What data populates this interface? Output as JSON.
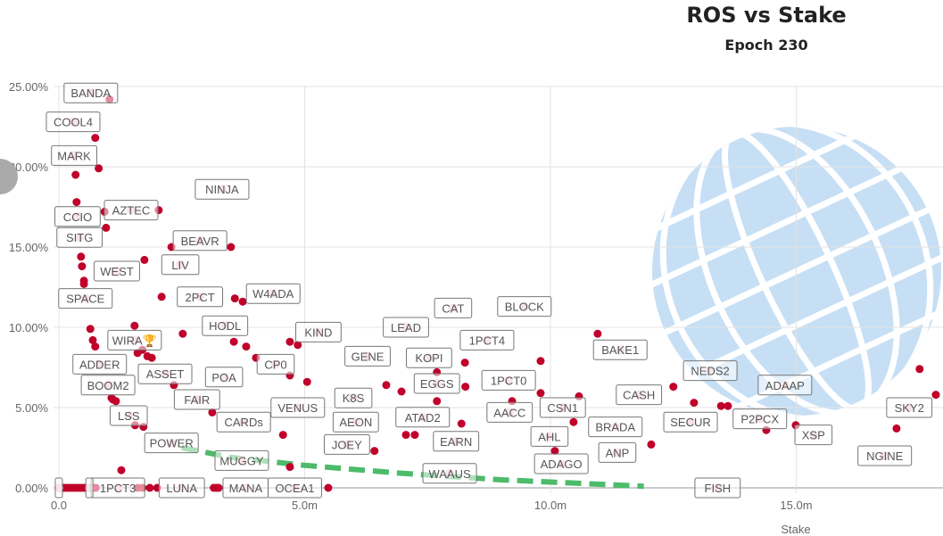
{
  "chart_data": {
    "type": "scatter",
    "title": "ROS vs Stake",
    "subtitle": "Epoch 230",
    "xlabel": "Stake",
    "ylabel": "",
    "xlim": [
      0,
      18
    ],
    "ylim": [
      0,
      25
    ],
    "x_ticks": [
      "0.0",
      "5.0m",
      "10.0m",
      "15.0m"
    ],
    "x_tick_values": [
      0,
      5,
      10,
      15
    ],
    "y_ticks": [
      "0.00%",
      "5.00%",
      "10.00%",
      "15.00%",
      "20.00%",
      "25.00%"
    ],
    "y_tick_values": [
      0,
      5,
      10,
      15,
      20,
      25
    ],
    "grid": true,
    "colors": {
      "point": "#c0002a",
      "labeled_point": "#f2c4cf",
      "trend": "#4cbb6a",
      "watermark": "#c6dff5"
    },
    "labeled_pools": [
      {
        "name": "BANDA",
        "x": 0.65,
        "y": 24.6
      },
      {
        "name": "COOL4",
        "x": 0.29,
        "y": 22.8
      },
      {
        "name": "MARK",
        "x": 0.31,
        "y": 20.7
      },
      {
        "name": "NINJA",
        "x": 3.32,
        "y": 18.6
      },
      {
        "name": "CCIO",
        "x": 0.38,
        "y": 16.9
      },
      {
        "name": "AZTEC",
        "x": 1.47,
        "y": 17.3
      },
      {
        "name": "SITG",
        "x": 0.42,
        "y": 15.6
      },
      {
        "name": "BEAVR",
        "x": 2.87,
        "y": 15.4
      },
      {
        "name": "LIV",
        "x": 2.47,
        "y": 13.9
      },
      {
        "name": "WEST",
        "x": 1.18,
        "y": 13.5
      },
      {
        "name": "SPACE",
        "x": 0.54,
        "y": 11.8
      },
      {
        "name": "2PCT",
        "x": 2.87,
        "y": 11.9
      },
      {
        "name": "W4ADA",
        "x": 4.36,
        "y": 12.1
      },
      {
        "name": "HODL",
        "x": 3.38,
        "y": 10.1
      },
      {
        "name": "LEAD",
        "x": 7.06,
        "y": 10.0
      },
      {
        "name": "CAT",
        "x": 8.02,
        "y": 11.2
      },
      {
        "name": "BLOCK",
        "x": 9.47,
        "y": 11.3
      },
      {
        "name": "KIND",
        "x": 5.28,
        "y": 9.7
      },
      {
        "name": "1PCT4",
        "x": 8.71,
        "y": 9.2
      },
      {
        "name": "WIRA🏆",
        "x": 1.54,
        "y": 9.2
      },
      {
        "name": "BAKE1",
        "x": 11.42,
        "y": 8.6
      },
      {
        "name": "GENE",
        "x": 6.28,
        "y": 8.2
      },
      {
        "name": "KOPI",
        "x": 7.53,
        "y": 8.1
      },
      {
        "name": "ADDER",
        "x": 0.83,
        "y": 7.7
      },
      {
        "name": "CP0",
        "x": 4.41,
        "y": 7.7
      },
      {
        "name": "ASSET",
        "x": 2.16,
        "y": 7.1
      },
      {
        "name": "POA",
        "x": 3.36,
        "y": 6.9
      },
      {
        "name": "NEDS2",
        "x": 13.25,
        "y": 7.3
      },
      {
        "name": "ADAAP",
        "x": 14.77,
        "y": 6.4
      },
      {
        "name": "EGGS",
        "x": 7.69,
        "y": 6.5
      },
      {
        "name": "1PCT0",
        "x": 9.15,
        "y": 6.7
      },
      {
        "name": "BOOM2",
        "x": 1.0,
        "y": 6.4
      },
      {
        "name": "CASH",
        "x": 11.8,
        "y": 5.8
      },
      {
        "name": "FAIR",
        "x": 2.81,
        "y": 5.5
      },
      {
        "name": "K8S",
        "x": 5.99,
        "y": 5.6
      },
      {
        "name": "VENUS",
        "x": 4.86,
        "y": 5.0
      },
      {
        "name": "CSN1",
        "x": 10.25,
        "y": 5.0
      },
      {
        "name": "SKY2",
        "x": 17.3,
        "y": 5.0
      },
      {
        "name": "AACC",
        "x": 9.17,
        "y": 4.7
      },
      {
        "name": "ATAD2",
        "x": 7.4,
        "y": 4.4
      },
      {
        "name": "LSS",
        "x": 1.42,
        "y": 4.5
      },
      {
        "name": "AEON",
        "x": 6.04,
        "y": 4.1
      },
      {
        "name": "CARDs",
        "x": 3.76,
        "y": 4.1
      },
      {
        "name": "SECUR",
        "x": 12.85,
        "y": 4.1
      },
      {
        "name": "P2PCX",
        "x": 14.26,
        "y": 4.3
      },
      {
        "name": "BRADA",
        "x": 11.32,
        "y": 3.8
      },
      {
        "name": "XSP",
        "x": 15.35,
        "y": 3.3
      },
      {
        "name": "AHL",
        "x": 9.98,
        "y": 3.2
      },
      {
        "name": "EARN",
        "x": 8.08,
        "y": 2.9
      },
      {
        "name": "POWER",
        "x": 2.29,
        "y": 2.8
      },
      {
        "name": "JOEY",
        "x": 5.86,
        "y": 2.7
      },
      {
        "name": "ANP",
        "x": 11.36,
        "y": 2.2
      },
      {
        "name": "NGINE",
        "x": 16.8,
        "y": 2.0
      },
      {
        "name": "MUGGY",
        "x": 3.72,
        "y": 1.7
      },
      {
        "name": "ADAGO",
        "x": 10.22,
        "y": 1.5
      },
      {
        "name": "WAAUS",
        "x": 7.95,
        "y": 0.9
      },
      {
        "name": "1PCT3",
        "x": 1.2,
        "y": 0
      },
      {
        "name": "LUNA",
        "x": 2.5,
        "y": 0
      },
      {
        "name": "MANA",
        "x": 3.8,
        "y": 0
      },
      {
        "name": "OCEA1",
        "x": 4.8,
        "y": 0
      },
      {
        "name": "FISH",
        "x": 13.4,
        "y": 0
      },
      {
        "name": "",
        "x": 0.0,
        "y": 0
      },
      {
        "name": "",
        "x": 0.62,
        "y": 0
      }
    ],
    "points": [
      [
        1.03,
        24.2
      ],
      [
        0.74,
        21.8
      ],
      [
        0.81,
        19.9
      ],
      [
        0.34,
        19.5
      ],
      [
        0.36,
        17.8
      ],
      [
        0.93,
        17.2
      ],
      [
        2.03,
        17.3
      ],
      [
        0.96,
        16.2
      ],
      [
        2.29,
        15.0
      ],
      [
        3.5,
        15.0
      ],
      [
        0.45,
        14.4
      ],
      [
        0.47,
        13.8
      ],
      [
        1.74,
        14.2
      ],
      [
        0.51,
        12.9
      ],
      [
        0.51,
        12.7
      ],
      [
        2.09,
        11.9
      ],
      [
        3.58,
        11.8
      ],
      [
        3.74,
        11.6
      ],
      [
        0.64,
        9.9
      ],
      [
        0.69,
        9.2
      ],
      [
        0.74,
        8.8
      ],
      [
        1.54,
        10.1
      ],
      [
        2.52,
        9.6
      ],
      [
        3.56,
        9.1
      ],
      [
        3.81,
        8.8
      ],
      [
        4.01,
        8.1
      ],
      [
        4.7,
        9.1
      ],
      [
        4.86,
        8.9
      ],
      [
        4.7,
        7.0
      ],
      [
        5.05,
        6.6
      ],
      [
        1.8,
        8.2
      ],
      [
        1.89,
        8.1
      ],
      [
        1.6,
        8.4
      ],
      [
        1.7,
        8.6
      ],
      [
        1.07,
        5.6
      ],
      [
        1.16,
        5.4
      ],
      [
        1.1,
        5.5
      ],
      [
        2.34,
        6.4
      ],
      [
        3.12,
        4.7
      ],
      [
        1.72,
        3.8
      ],
      [
        1.55,
        3.9
      ],
      [
        4.56,
        3.3
      ],
      [
        1.27,
        1.1
      ],
      [
        4.7,
        1.3
      ],
      [
        6.66,
        6.4
      ],
      [
        6.97,
        6.0
      ],
      [
        7.69,
        7.2
      ],
      [
        8.27,
        6.3
      ],
      [
        8.26,
        7.8
      ],
      [
        7.69,
        5.4
      ],
      [
        8.19,
        4.0
      ],
      [
        7.06,
        3.3
      ],
      [
        7.24,
        3.3
      ],
      [
        6.42,
        2.3
      ],
      [
        9.8,
        7.9
      ],
      [
        9.8,
        5.9
      ],
      [
        9.22,
        5.4
      ],
      [
        10.58,
        5.7
      ],
      [
        10.47,
        4.1
      ],
      [
        10.09,
        2.3
      ],
      [
        10.96,
        9.6
      ],
      [
        12.5,
        6.3
      ],
      [
        12.92,
        5.3
      ],
      [
        13.47,
        5.1
      ],
      [
        13.61,
        5.1
      ],
      [
        14.39,
        3.6
      ],
      [
        14.99,
        3.9
      ],
      [
        12.05,
        2.7
      ],
      [
        17.51,
        7.4
      ],
      [
        17.84,
        5.8
      ],
      [
        17.04,
        3.7
      ],
      [
        0.05,
        0
      ],
      [
        0.1,
        0
      ],
      [
        0.15,
        0
      ],
      [
        0.2,
        0
      ],
      [
        0.25,
        0
      ],
      [
        0.3,
        0
      ],
      [
        0.35,
        0
      ],
      [
        0.4,
        0
      ],
      [
        0.45,
        0
      ],
      [
        0.5,
        0
      ],
      [
        0.55,
        0
      ],
      [
        0.7,
        0
      ],
      [
        0.75,
        0
      ],
      [
        1.6,
        0
      ],
      [
        1.7,
        0
      ],
      [
        1.85,
        0
      ],
      [
        2.0,
        0
      ],
      [
        3.15,
        0
      ],
      [
        3.2,
        0
      ],
      [
        3.25,
        0
      ],
      [
        5.48,
        0
      ]
    ],
    "trend_line": {
      "style": "dashed",
      "points": [
        [
          2.5,
          2.5
        ],
        [
          3.5,
          1.9
        ],
        [
          5,
          1.4
        ],
        [
          7,
          0.9
        ],
        [
          9,
          0.5
        ],
        [
          11.9,
          0.1
        ]
      ]
    }
  }
}
